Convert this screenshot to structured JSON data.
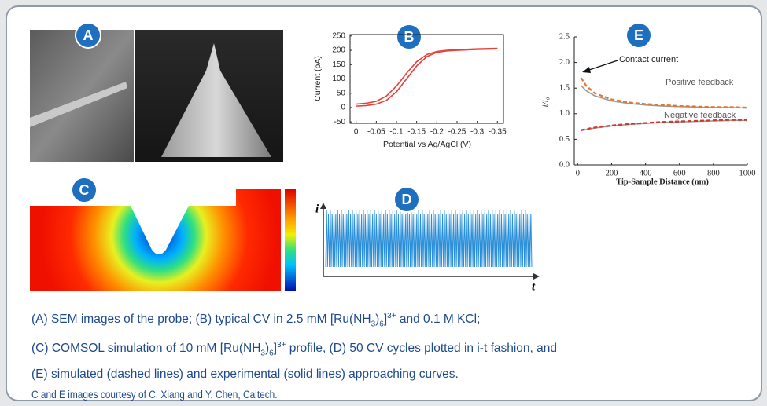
{
  "panels": [
    {
      "label": "A"
    },
    {
      "label": "B",
      "chart": {
        "type": "line",
        "xlabel": "Potential vs Ag/AgCl (V)",
        "ylabel": "Current (pA)",
        "x": [
          0,
          -0.025,
          -0.05,
          -0.075,
          -0.1,
          -0.125,
          -0.15,
          -0.175,
          -0.2,
          -0.225,
          -0.25,
          -0.3,
          -0.35
        ],
        "series": [
          {
            "color": "#e8403a",
            "values": [
              5,
              7,
              12,
              25,
              55,
              100,
              145,
              178,
              193,
              198,
              200,
              203,
              205
            ]
          },
          {
            "color": "#e8403a",
            "values": [
              12,
              15,
              22,
              40,
              75,
              120,
              160,
              185,
              196,
              200,
              202,
              205,
              207
            ]
          }
        ],
        "xlim": [
          0.015,
          -0.365
        ],
        "xticks": [
          0,
          -0.05,
          -0.1,
          -0.15,
          -0.2,
          -0.25,
          -0.3,
          -0.35
        ],
        "ylim": [
          -55,
          255
        ],
        "yticks": [
          -50,
          0,
          50,
          100,
          150,
          200,
          250
        ],
        "frame": true
      }
    },
    {
      "label": "C"
    },
    {
      "label": "D",
      "chart": {
        "type": "line",
        "xlabel": "t",
        "ylabel": "i"
      }
    },
    {
      "label": "E",
      "chart": {
        "type": "line",
        "xlabel": "Tip-Sample Distance (nm)",
        "ylabel": "i/i₀",
        "annotations": [
          "Contact current",
          "Positive feedback",
          "Negative feedback"
        ],
        "x": [
          20,
          50,
          100,
          200,
          300,
          400,
          500,
          600,
          700,
          800,
          900,
          1000
        ],
        "series": [
          {
            "color": "#9a9a9a",
            "style": "solid",
            "values": [
              1.55,
              1.45,
              1.35,
              1.25,
              1.2,
              1.17,
              1.15,
              1.14,
              1.13,
              1.12,
              1.12,
              1.11
            ]
          },
          {
            "color": "#e8732a",
            "style": "dashed",
            "values": [
              1.7,
              1.55,
              1.4,
              1.28,
              1.22,
              1.19,
              1.17,
              1.15,
              1.14,
              1.13,
              1.13,
              1.12
            ]
          },
          {
            "color": "#9a9a9a",
            "style": "solid",
            "values": [
              0.67,
              0.69,
              0.72,
              0.76,
              0.79,
              0.81,
              0.83,
              0.84,
              0.85,
              0.86,
              0.87,
              0.87
            ]
          },
          {
            "color": "#d9342b",
            "style": "dashed",
            "values": [
              0.68,
              0.7,
              0.73,
              0.77,
              0.8,
              0.82,
              0.84,
              0.85,
              0.86,
              0.87,
              0.88,
              0.88
            ]
          }
        ],
        "xlim": [
          -20,
          1000
        ],
        "xticks": [
          0,
          200,
          400,
          600,
          800,
          1000
        ],
        "ylim": [
          0,
          2.5
        ],
        "yticks": [
          {
            "value": 0,
            "label": "0.0"
          },
          0.5,
          {
            "value": 1,
            "label": "1.0"
          },
          1.5,
          {
            "value": 2,
            "label": "2.0"
          },
          2.5
        ],
        "frame": false
      }
    }
  ],
  "caption": {
    "lines": [
      [
        "(A) SEM images of the probe; (B) typical CV in 2.5 mM [Ru(NH",
        "3",
        ")",
        "6",
        "]",
        "3+",
        " and 0.1 M KCl;"
      ],
      [
        "(C) COMSOL simulation of 10 mM [Ru(NH",
        "3",
        ")",
        "6",
        "]",
        "3+",
        " profile, (D) 50 CV cycles plotted in i-t fashion, and"
      ],
      [
        "(E) simulated (dashed lines) and experimental (solid lines) approaching curves."
      ]
    ],
    "credit": "C and E images courtesy of C. Xiang and Y. Chen, Caltech."
  }
}
